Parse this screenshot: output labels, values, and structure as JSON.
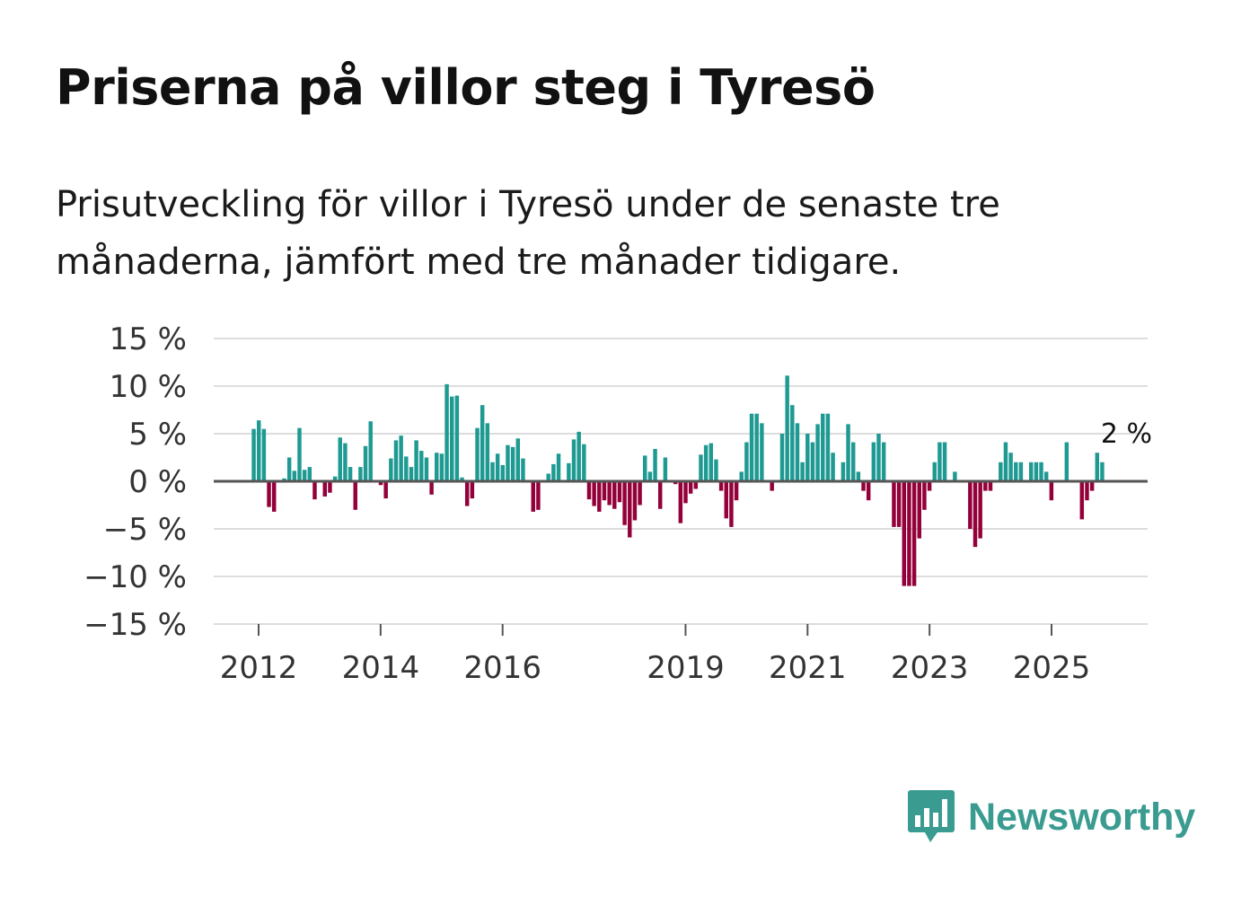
{
  "title": "Priserna på villor steg i Tyresö",
  "subtitle": "Prisutveckling för villor i Tyresö under de senaste tre månaderna, jämfört med tre månader tidigare.",
  "brand": {
    "name": "Newsworthy",
    "color": "#3a9b90",
    "icon": "bar-chart-speech-bubble-icon"
  },
  "colors": {
    "positive": "#1f9a93",
    "negative": "#93003a",
    "grid": "#dddddd",
    "zero": "#555555"
  },
  "chart_data": {
    "type": "bar",
    "title": "Priserna på villor steg i Tyresö",
    "xlabel": "",
    "ylabel": "",
    "ylim": [
      -15,
      15
    ],
    "y_ticks": [
      15,
      10,
      5,
      0,
      -5,
      -10,
      -15
    ],
    "y_tick_labels": [
      "15 %",
      "10 %",
      "5 %",
      "0 %",
      "−5 %",
      "−10 %",
      "−15 %"
    ],
    "x_ticks": [
      2012,
      2014,
      2016,
      2019,
      2021,
      2023,
      2025
    ],
    "x_tick_labels": [
      "2012",
      "2014",
      "2016",
      "2019",
      "2021",
      "2023",
      "2025"
    ],
    "x_start": 2011.92,
    "x_step": 0.0833,
    "values": [
      5.5,
      6.4,
      5.5,
      -2.7,
      -3.2,
      0,
      0.3,
      2.5,
      1.1,
      5.6,
      1.2,
      1.5,
      -1.9,
      0,
      -1.6,
      -1.2,
      0.5,
      4.6,
      4.0,
      1.5,
      -3.0,
      1.5,
      3.7,
      6.3,
      0,
      -0.4,
      -1.8,
      2.4,
      4.3,
      4.8,
      2.6,
      1.5,
      4.3,
      3.2,
      2.5,
      -1.4,
      3.0,
      2.9,
      10.2,
      8.9,
      9.0,
      0.4,
      -2.6,
      -1.8,
      5.6,
      8.0,
      6.1,
      2.0,
      2.9,
      1.7,
      3.8,
      3.6,
      4.5,
      2.4,
      0,
      -3.2,
      -3.0,
      0,
      0.8,
      1.8,
      2.9,
      0,
      1.9,
      4.4,
      5.2,
      3.9,
      -1.9,
      -2.6,
      -3.2,
      -2.0,
      -2.5,
      -2.9,
      -2.2,
      -4.6,
      -5.9,
      -4.1,
      -2.5,
      2.7,
      1.0,
      3.4,
      -2.9,
      2.5,
      0,
      -0.3,
      -4.4,
      -2.3,
      -1.3,
      -0.8,
      2.8,
      3.8,
      4.0,
      2.3,
      -1.0,
      -3.9,
      -4.8,
      -2.0,
      1.0,
      4.1,
      7.1,
      7.1,
      6.1,
      0,
      -1.0,
      0,
      5.0,
      11.1,
      8.0,
      6.1,
      2.0,
      5.0,
      4.1,
      6.0,
      7.1,
      7.1,
      3.0,
      0,
      2.0,
      6.0,
      4.1,
      1.0,
      -1.0,
      -2.0,
      4.1,
      5.0,
      4.1,
      0,
      -4.8,
      -4.8,
      -11.0,
      -11.0,
      -11.0,
      -6.0,
      -3.0,
      -1.0,
      2.0,
      4.1,
      4.1,
      0,
      1.0,
      0,
      0,
      -5.0,
      -6.9,
      -6.0,
      -1.0,
      -1.0,
      0,
      2.0,
      4.1,
      3.0,
      2.0,
      2.0,
      0,
      2.0,
      2.0,
      2.0,
      1.0,
      -2.0,
      0,
      0,
      4.1,
      0,
      0,
      -4.0,
      -2.0,
      -1.0,
      3.0,
      2.0
    ],
    "annotations": [
      {
        "label": "2 %",
        "value": 2
      }
    ]
  }
}
